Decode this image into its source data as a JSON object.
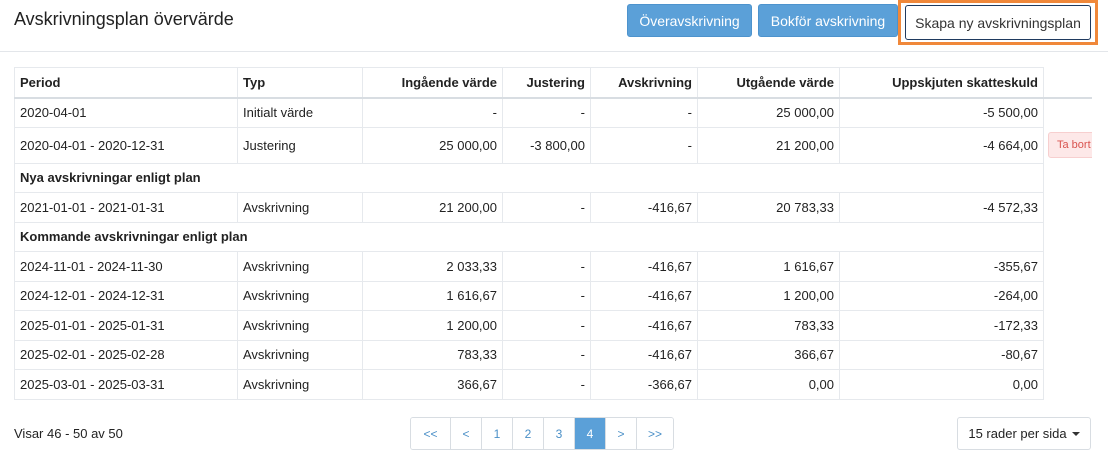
{
  "header": {
    "title": "Avskrivningsplan övervärde",
    "btn_over": "Överavskrivning",
    "btn_bokfor": "Bokför avskrivning",
    "btn_new": "Skapa ny avskrivningsplan"
  },
  "table": {
    "columns": [
      "Period",
      "Typ",
      "Ingående värde",
      "Justering",
      "Avskrivning",
      "Utgående värde",
      "Uppskjuten skatteskuld"
    ],
    "rows_top": [
      {
        "period": "2020-04-01",
        "typ": "Initialt värde",
        "in": "-",
        "just": "-",
        "avs": "-",
        "utg": "25 000,00",
        "skatt": "-5 500,00"
      },
      {
        "period": "2020-04-01 - 2020-12-31",
        "typ": "Justering",
        "in": "25 000,00",
        "just": "-3 800,00",
        "avs": "-",
        "utg": "21 200,00",
        "skatt": "-4 664,00",
        "action": "Ta bort"
      }
    ],
    "section_new": "Nya avskrivningar enligt plan",
    "rows_new": [
      {
        "period": "2021-01-01 - 2021-01-31",
        "typ": "Avskrivning",
        "in": "21 200,00",
        "just": "-",
        "avs": "-416,67",
        "utg": "20 783,33",
        "skatt": "-4 572,33"
      }
    ],
    "section_upcoming": "Kommande avskrivningar enligt plan",
    "rows_upcoming": [
      {
        "period": "2024-11-01 - 2024-11-30",
        "typ": "Avskrivning",
        "in": "2 033,33",
        "just": "-",
        "avs": "-416,67",
        "utg": "1 616,67",
        "skatt": "-355,67"
      },
      {
        "period": "2024-12-01 - 2024-12-31",
        "typ": "Avskrivning",
        "in": "1 616,67",
        "just": "-",
        "avs": "-416,67",
        "utg": "1 200,00",
        "skatt": "-264,00"
      },
      {
        "period": "2025-01-01 - 2025-01-31",
        "typ": "Avskrivning",
        "in": "1 200,00",
        "just": "-",
        "avs": "-416,67",
        "utg": "783,33",
        "skatt": "-172,33"
      },
      {
        "period": "2025-02-01 - 2025-02-28",
        "typ": "Avskrivning",
        "in": "783,33",
        "just": "-",
        "avs": "-416,67",
        "utg": "366,67",
        "skatt": "-80,67"
      },
      {
        "period": "2025-03-01 - 2025-03-31",
        "typ": "Avskrivning",
        "in": "366,67",
        "just": "-",
        "avs": "-366,67",
        "utg": "0,00",
        "skatt": "0,00"
      }
    ]
  },
  "footer": {
    "info": "Visar 46 - 50 av 50",
    "pages": [
      "<<",
      "<",
      "1",
      "2",
      "3",
      "4",
      ">",
      ">>"
    ],
    "active_page": "4",
    "rows_per_page": "15 rader per sida"
  },
  "colors": {
    "primary": "#5ba0d8",
    "highlight": "#f0883a",
    "danger": "#d9534f"
  }
}
